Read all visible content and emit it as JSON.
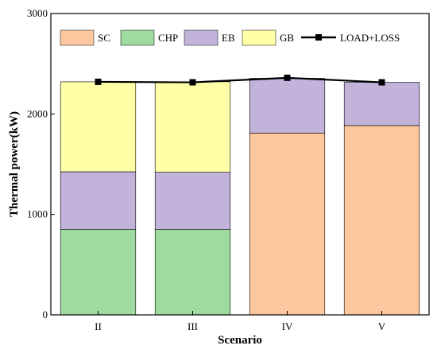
{
  "chart_data": {
    "type": "bar",
    "stacked": true,
    "title": "",
    "xlabel": "Scenario",
    "ylabel": "Thermal power(kW)",
    "categories": [
      "II",
      "III",
      "IV",
      "V"
    ],
    "ylim": [
      0,
      3000
    ],
    "yticks": [
      0,
      1000,
      2000,
      3000
    ],
    "grid": false,
    "legend_position": "top",
    "series": [
      {
        "name": "SC",
        "color": "#FCC79E",
        "values": [
          0,
          0,
          1810,
          1885
        ]
      },
      {
        "name": "CHP",
        "color": "#9FDB9F",
        "values": [
          850,
          850,
          0,
          0
        ]
      },
      {
        "name": "EB",
        "color": "#C1B3DA",
        "values": [
          575,
          570,
          545,
          430
        ]
      },
      {
        "name": "GB",
        "color": "#FFFFA8",
        "values": [
          895,
          900,
          0,
          0
        ]
      }
    ],
    "line_series": {
      "name": "LOAD+LOSS",
      "color": "#000000",
      "marker": "square",
      "values": [
        2320,
        2315,
        2360,
        2315
      ]
    }
  }
}
